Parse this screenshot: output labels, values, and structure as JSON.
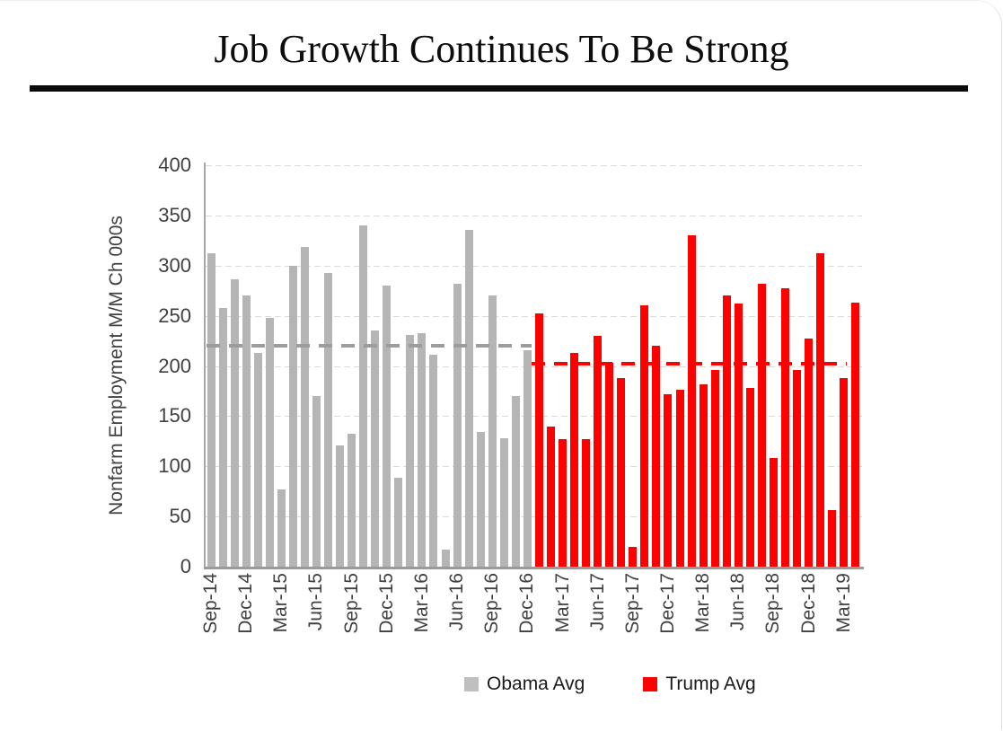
{
  "header": {
    "title": "Job Growth Continues To Be Strong"
  },
  "colors": {
    "obama_bar": "#b5b5b5",
    "trump_bar": "#fe0000",
    "obama_avg_line": "#9c9c9c",
    "trump_avg_line": "#fe0000",
    "gridline": "#dadada",
    "axis": "#a6a6a6",
    "axis_text": "#404040",
    "title_text": "#0d0d0d"
  },
  "chart_data": {
    "type": "bar",
    "title": "Job Growth Continues To Be Strong",
    "xlabel": "",
    "ylabel": "Nonfarm Employment M/M Ch 000s",
    "ylim": [
      0,
      400
    ],
    "ytick_step": 50,
    "grid": "horizontal-dashed",
    "legend_position": "bottom-center",
    "categories": [
      "Sep-14",
      "Oct-14",
      "Nov-14",
      "Dec-14",
      "Jan-15",
      "Feb-15",
      "Mar-15",
      "Apr-15",
      "May-15",
      "Jun-15",
      "Jul-15",
      "Aug-15",
      "Sep-15",
      "Oct-15",
      "Nov-15",
      "Dec-15",
      "Jan-16",
      "Feb-16",
      "Mar-16",
      "Apr-16",
      "May-16",
      "Jun-16",
      "Jul-16",
      "Aug-16",
      "Sep-16",
      "Oct-16",
      "Nov-16",
      "Dec-16",
      "Jan-17",
      "Feb-17",
      "Mar-17",
      "Apr-17",
      "May-17",
      "Jun-17",
      "Jul-17",
      "Aug-17",
      "Sep-17",
      "Oct-17",
      "Nov-17",
      "Dec-17",
      "Jan-18",
      "Feb-18",
      "Mar-18",
      "Apr-18",
      "May-18",
      "Jun-18",
      "Jul-18",
      "Aug-18",
      "Sep-18",
      "Oct-18",
      "Nov-18",
      "Dec-18",
      "Jan-19",
      "Feb-19",
      "Mar-19",
      "Apr-19"
    ],
    "xtick_labels": [
      "Sep-14",
      "Dec-14",
      "Mar-15",
      "Jun-15",
      "Sep-15",
      "Dec-15",
      "Mar-16",
      "Jun-16",
      "Sep-16",
      "Dec-16",
      "Mar-17",
      "Jun-17",
      "Sep-17",
      "Dec-17",
      "Mar-18",
      "Jun-18",
      "Sep-18",
      "Dec-18",
      "Mar-19"
    ],
    "xtick_every": 3,
    "series": [
      {
        "name": "Obama Avg",
        "color": "#b5b5b5",
        "avg": 220,
        "values": [
          312,
          258,
          286,
          270,
          213,
          248,
          77,
          300,
          319,
          170,
          293,
          121,
          132,
          340,
          235,
          280,
          89,
          231,
          233,
          211,
          17,
          282,
          336,
          134,
          270,
          128,
          170,
          216
        ]
      },
      {
        "name": "Trump Avg",
        "color": "#fe0000",
        "avg": 202,
        "values": [
          252,
          140,
          127,
          213,
          127,
          230,
          203,
          188,
          20,
          260,
          220,
          172,
          176,
          330,
          182,
          196,
          270,
          262,
          178,
          282,
          108,
          277,
          196,
          227,
          312,
          56,
          188,
          263
        ]
      }
    ],
    "legend": [
      {
        "label": "Obama Avg",
        "color": "#bfbfbf"
      },
      {
        "label": "Trump Avg",
        "color": "#fe0000"
      }
    ]
  }
}
